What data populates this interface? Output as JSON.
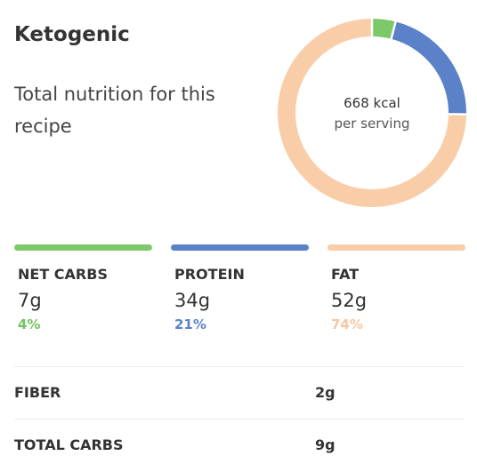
{
  "header": {
    "title": "Ketogenic",
    "subtitle": "Total nutrition for this recipe"
  },
  "summary": {
    "kcal": "668 kcal",
    "serving_label": "per serving"
  },
  "colors": {
    "net_carbs": "#7dc96a",
    "protein": "#5b82c9",
    "fat": "#f8cda8"
  },
  "macros": [
    {
      "label": "NET CARBS",
      "amount": "7g",
      "percent": "4%",
      "fraction": 0.04,
      "color": "#7dc96a",
      "pct_color": "#72c25e"
    },
    {
      "label": "PROTEIN",
      "amount": "34g",
      "percent": "21%",
      "fraction": 0.21,
      "color": "#5b82c9",
      "pct_color": "#5b82c9"
    },
    {
      "label": "FAT",
      "amount": "52g",
      "percent": "74%",
      "fraction": 0.74,
      "color": "#f8cda8",
      "pct_color": "#f7c8a0"
    }
  ],
  "details": [
    {
      "label": "FIBER",
      "value": "2g"
    },
    {
      "label": "TOTAL CARBS",
      "value": "9g"
    }
  ]
}
